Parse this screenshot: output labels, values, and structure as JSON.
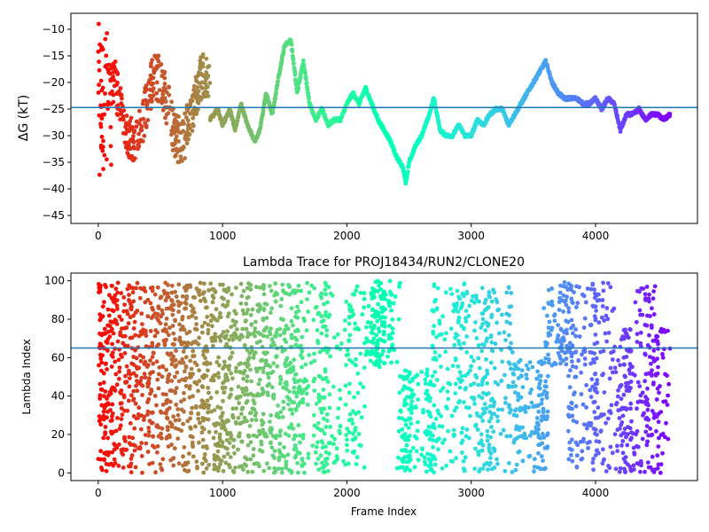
{
  "chart_data": [
    {
      "type": "scatter",
      "title": "",
      "xlabel": "",
      "ylabel": "ΔG (kT)",
      "xlim": [
        -220,
        4820
      ],
      "ylim": [
        -46.5,
        -7
      ],
      "xticks": [
        0,
        1000,
        2000,
        3000,
        4000
      ],
      "xtick_labels": [
        "0",
        "1000",
        "2000",
        "3000",
        "4000"
      ],
      "yticks": [
        -10,
        -15,
        -20,
        -25,
        -30,
        -35,
        -40,
        -45
      ],
      "ytick_labels": [
        "−10",
        "−15",
        "−20",
        "−25",
        "−30",
        "−35",
        "−40",
        "−45"
      ],
      "hline": -24.7,
      "colormap": "rainbow (red at frame 0 → violet at last frame)",
      "color_start": "#ff0000",
      "color_end": "#8000ff",
      "line_color": "#1f77b4",
      "grid": false,
      "trace_keypoints": {
        "x": [
          900,
          960,
          1000,
          1060,
          1100,
          1150,
          1200,
          1260,
          1300,
          1350,
          1400,
          1450,
          1500,
          1550,
          1600,
          1650,
          1700,
          1750,
          1800,
          1850,
          1900,
          1950,
          2000,
          2050,
          2100,
          2150,
          2200,
          2250,
          2300,
          2350,
          2400,
          2450,
          2475,
          2500,
          2550,
          2600,
          2650,
          2700,
          2750,
          2800,
          2850,
          2900,
          2950,
          3000,
          3050,
          3100,
          3150,
          3200,
          3250,
          3300,
          3350,
          3400,
          3450,
          3500,
          3550,
          3600,
          3650,
          3700,
          3750,
          3800,
          3850,
          3900,
          3950,
          4000,
          4050,
          4100,
          4150,
          4200,
          4250,
          4300,
          4350,
          4400,
          4450,
          4500,
          4550,
          4600
        ],
        "y": [
          -27,
          -25,
          -28,
          -25,
          -29,
          -24,
          -28,
          -31,
          -29,
          -22,
          -26,
          -19,
          -13,
          -12,
          -22,
          -16,
          -24,
          -27,
          -25,
          -28,
          -27,
          -27,
          -24,
          -22,
          -24,
          -21,
          -24,
          -27,
          -29,
          -31,
          -34,
          -36,
          -39,
          -35,
          -32,
          -30,
          -27,
          -23,
          -29,
          -30,
          -30,
          -28,
          -30,
          -30,
          -27,
          -28,
          -26,
          -25,
          -25,
          -28,
          -26,
          -24,
          -22,
          -20,
          -18,
          -16,
          -20,
          -22,
          -23,
          -23,
          -23,
          -24,
          -24,
          -23,
          -25,
          -23,
          -24,
          -29,
          -26,
          -26,
          -25,
          -27,
          -26,
          -26,
          -27,
          -26
        ]
      },
      "scatter_region": {
        "x_range": [
          0,
          900
        ],
        "y_range": [
          -38,
          -9
        ]
      }
    },
    {
      "type": "scatter",
      "title": "Lambda Trace for PROJ18434/RUN2/CLONE20",
      "xlabel": "Frame Index",
      "ylabel": "Lambda Index",
      "xlim": [
        -220,
        4820
      ],
      "ylim": [
        -4,
        104
      ],
      "xticks": [
        0,
        1000,
        2000,
        3000,
        4000
      ],
      "xtick_labels": [
        "0",
        "1000",
        "2000",
        "3000",
        "4000"
      ],
      "yticks": [
        0,
        20,
        40,
        60,
        80,
        100
      ],
      "ytick_labels": [
        "0",
        "20",
        "40",
        "60",
        "80",
        "100"
      ],
      "hline": 65,
      "colormap": "rainbow (red at frame 0 → violet at last frame)",
      "line_color": "#1f77b4",
      "grid": false,
      "value_range": [
        0,
        99
      ],
      "frame_range": [
        0,
        4600
      ],
      "block_pattern": [
        {
          "x": [
            3340,
            3580
          ],
          "y": [
            0,
            60
          ]
        },
        {
          "x": [
            3620,
            3780
          ],
          "y": [
            55,
            100
          ]
        },
        {
          "x": [
            2430,
            2680
          ],
          "y": [
            0,
            55
          ]
        },
        {
          "x": [
            2150,
            2380
          ],
          "y": [
            55,
            100
          ]
        },
        {
          "x": [
            4150,
            4320
          ],
          "y": [
            0,
            75
          ]
        },
        {
          "x": [
            4480,
            4600
          ],
          "y": [
            0,
            75
          ]
        }
      ]
    }
  ]
}
